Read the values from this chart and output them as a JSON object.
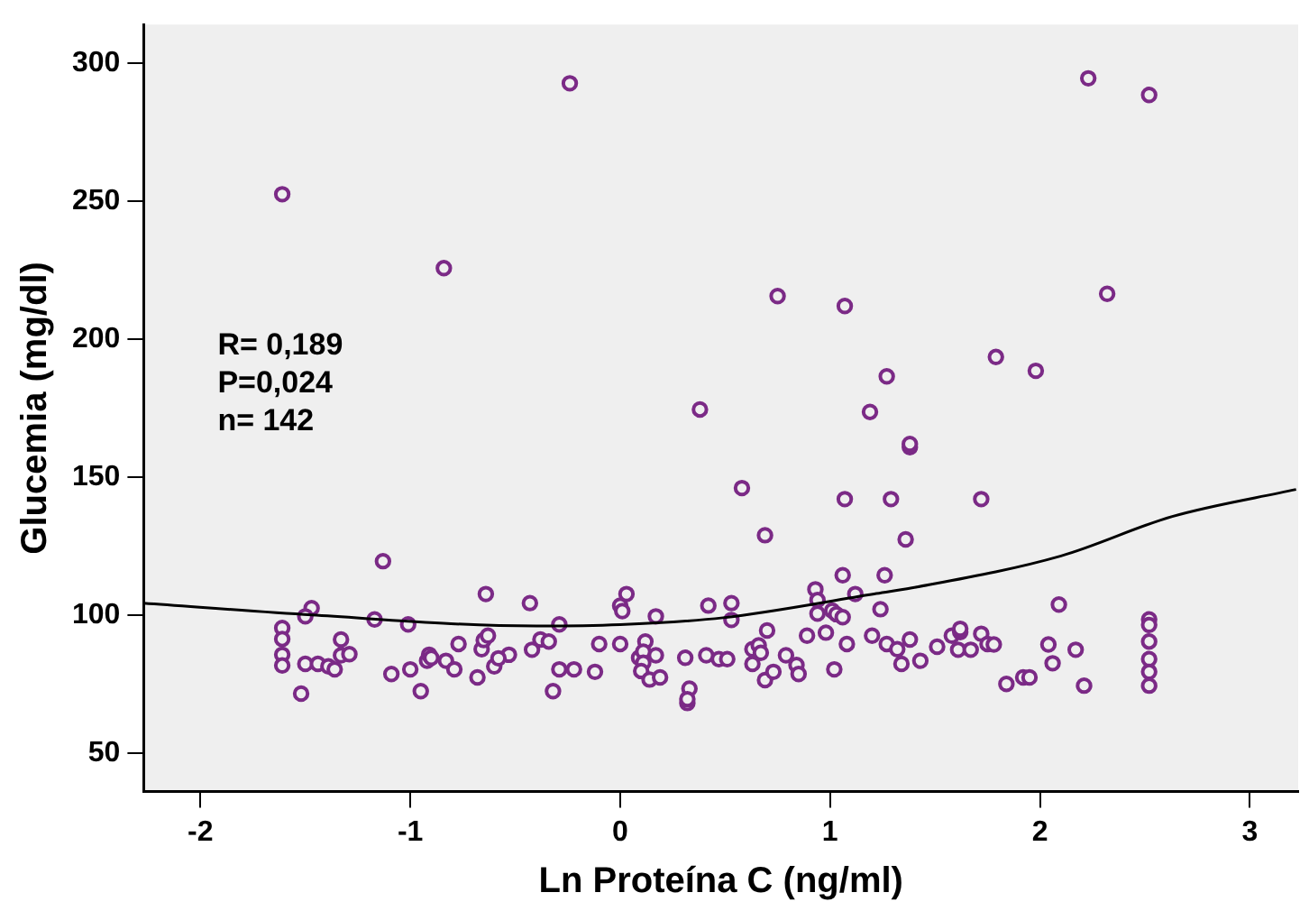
{
  "chart_data": {
    "type": "scatter",
    "xlabel": "Ln Proteína C (ng/ml)",
    "ylabel": "Glucemia (mg/dl)",
    "annotations": [
      "R= 0,189",
      "P=0,024",
      "n= 142"
    ],
    "xlim": [
      -2.27,
      3.23
    ],
    "xticks": [
      -2,
      -1,
      0,
      1,
      2,
      3
    ],
    "ylim": [
      36,
      314
    ],
    "yticks": [
      50,
      100,
      150,
      200,
      250,
      300
    ],
    "grid": false,
    "legend": false,
    "series": [
      {
        "marker": "circle",
        "color": "#7b2a86",
        "x": [
          -0.24,
          -1.61,
          -0.84,
          0.38,
          2.23,
          2.52,
          0.75,
          1.07,
          2.32,
          1.79,
          1.98,
          1.27,
          1.19,
          1.38,
          1.38,
          0.58,
          1.07,
          1.29,
          1.72,
          0.69,
          1.36,
          -0.43,
          -0.53,
          -0.42,
          -0.38,
          -0.34,
          -0.29,
          -0.32,
          -0.29,
          -0.22,
          -0.12,
          -0.1,
          0,
          0.03,
          0,
          0.01,
          0.17,
          0.12,
          0.09,
          0.11,
          0.11,
          0.1,
          0.14,
          0.19,
          0.17,
          0.31,
          0.33,
          0.32,
          0.32,
          0.41,
          0.42,
          0.47,
          0.51,
          0.53,
          0.53,
          0.7,
          0.63,
          0.66,
          0.67,
          0.63,
          0.69,
          0.73,
          0.79,
          0.84,
          0.85,
          0.89,
          0.98,
          1.02,
          1.08,
          0.93,
          0.94,
          0.94,
          1.01,
          1.03,
          1.06,
          1.06,
          1.26,
          1.12,
          1.24,
          1.2,
          1.27,
          1.32,
          1.34,
          1.38,
          -1.13,
          -1.47,
          -1.5,
          -1.61,
          -1.61,
          -1.61,
          -1.61,
          -1.52,
          -1.5,
          -1.44,
          -1.39,
          -1.36,
          -1.33,
          -1.33,
          -1.29,
          -1.17,
          -1.09,
          -1.01,
          -1,
          -0.95,
          -0.92,
          -0.91,
          -0.9,
          -0.83,
          -0.79,
          -0.77,
          -0.68,
          -0.66,
          -0.65,
          -0.63,
          -0.64,
          -0.6,
          -0.58,
          1.43,
          1.51,
          1.58,
          1.62,
          1.62,
          1.61,
          1.67,
          1.72,
          1.75,
          1.78,
          1.84,
          1.92,
          1.95,
          2.04,
          2.06,
          2.09,
          2.17,
          2.21,
          2.52,
          2.52,
          2.52,
          2.52,
          2.52,
          2.52
        ],
        "values": [
          292.7,
          252.5,
          225.7,
          174.5,
          294.5,
          288.5,
          215.6,
          212,
          216.4,
          193.5,
          188.5,
          186.5,
          173.6,
          160.8,
          162,
          146,
          142,
          142,
          142,
          128.9,
          127.4,
          104.3,
          85.6,
          87.4,
          91.1,
          90.4,
          96.6,
          72.4,
          80.3,
          80.3,
          79.4,
          89.5,
          89.5,
          107.6,
          103.4,
          101.4,
          99.5,
          90.4,
          84.5,
          86.7,
          82.7,
          79.7,
          76.6,
          77.4,
          85.4,
          84.5,
          73.3,
          68.1,
          69.5,
          85.4,
          103.4,
          84,
          84,
          104.3,
          98.2,
          94.4,
          87.6,
          89,
          86.3,
          82.3,
          76.4,
          79.4,
          85.4,
          81.9,
          78.6,
          92.5,
          93.6,
          80.3,
          89.5,
          109.3,
          105.4,
          100.5,
          101.6,
          100.3,
          99.2,
          114.4,
          114.4,
          107.6,
          102.1,
          92.5,
          89.5,
          87.6,
          82.3,
          91.1,
          119.5,
          102.5,
          99.5,
          95.3,
          91.3,
          85.6,
          81.7,
          71.5,
          82.3,
          82.3,
          81.4,
          80.3,
          91.1,
          85.4,
          85.8,
          98.4,
          78.6,
          96.6,
          80.3,
          72.4,
          83.4,
          85.6,
          84.5,
          83.4,
          80.3,
          89.5,
          77.4,
          87.6,
          90.9,
          92.5,
          107.6,
          81.4,
          84.3,
          83.4,
          88.5,
          92.5,
          93.8,
          95,
          87.4,
          87.4,
          93.2,
          89.5,
          89.3,
          75,
          77.4,
          77.4,
          89.3,
          82.5,
          103.8,
          87.4,
          74.4,
          98.4,
          96.4,
          90.4,
          84,
          79.4,
          74.4
        ]
      },
      {
        "type": "line",
        "marker": "none",
        "color": "#000000",
        "x": [
          -2.27,
          -1.47,
          -0.4,
          0,
          0.49,
          1.21,
          1.39,
          2.1,
          2.63,
          3.22
        ],
        "values": [
          104.3,
          100,
          96,
          96.5,
          99,
          107.6,
          109.8,
          121.4,
          135.7,
          145.5
        ]
      }
    ]
  }
}
